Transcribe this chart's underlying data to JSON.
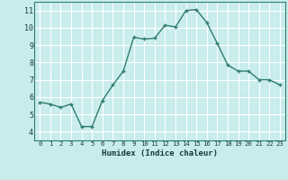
{
  "x": [
    0,
    1,
    2,
    3,
    4,
    5,
    6,
    7,
    8,
    9,
    10,
    11,
    12,
    13,
    14,
    15,
    16,
    17,
    18,
    19,
    20,
    21,
    22,
    23
  ],
  "y": [
    5.7,
    5.6,
    5.4,
    5.6,
    4.3,
    4.3,
    5.8,
    6.7,
    7.5,
    9.45,
    9.35,
    9.4,
    10.15,
    10.05,
    11.0,
    11.05,
    10.3,
    9.1,
    7.85,
    7.5,
    7.5,
    7.0,
    7.0,
    6.7
  ],
  "xlim": [
    -0.5,
    23.5
  ],
  "ylim": [
    3.5,
    11.5
  ],
  "yticks": [
    4,
    5,
    6,
    7,
    8,
    9,
    10,
    11
  ],
  "xticks": [
    0,
    1,
    2,
    3,
    4,
    5,
    6,
    7,
    8,
    9,
    10,
    11,
    12,
    13,
    14,
    15,
    16,
    17,
    18,
    19,
    20,
    21,
    22,
    23
  ],
  "xlabel": "Humidex (Indice chaleur)",
  "line_color": "#2e7d6e",
  "marker_color": "#2e7d6e",
  "bg_color": "#c8ecec",
  "grid_major_color": "#ffffff",
  "grid_minor_color": "#daf0f0"
}
